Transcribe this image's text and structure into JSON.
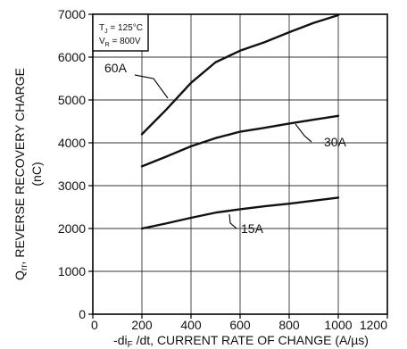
{
  "chart_data": {
    "type": "line",
    "xlabel": "-di_F /dt, CURRENT RATE OF CHANGE (A/µs)",
    "ylabel": "Q_rr, REVERSE RECOVERY CHARGE",
    "ylabel_unit": "(nC)",
    "xlim": [
      0,
      1200
    ],
    "ylim": [
      0,
      7000
    ],
    "x_ticks": [
      0,
      200,
      400,
      600,
      800,
      1000,
      1200
    ],
    "y_ticks": [
      0,
      1000,
      2000,
      3000,
      4000,
      5000,
      6000,
      7000
    ],
    "grid": true,
    "annotation": {
      "line1": "T_J = 125°C",
      "line2": "V_R = 800V"
    },
    "series": [
      {
        "name": "60A",
        "x": [
          200,
          300,
          400,
          500,
          600,
          700,
          800,
          900,
          1000
        ],
        "y": [
          4200,
          4780,
          5400,
          5880,
          6150,
          6350,
          6580,
          6800,
          6980
        ]
      },
      {
        "name": "30A",
        "x": [
          200,
          300,
          400,
          500,
          600,
          700,
          800,
          900,
          1000
        ],
        "y": [
          3450,
          3680,
          3920,
          4110,
          4260,
          4350,
          4450,
          4540,
          4630
        ]
      },
      {
        "name": "15A",
        "x": [
          200,
          300,
          400,
          500,
          600,
          700,
          800,
          900,
          1000
        ],
        "y": [
          2000,
          2120,
          2250,
          2370,
          2450,
          2520,
          2580,
          2650,
          2720
        ]
      }
    ]
  }
}
